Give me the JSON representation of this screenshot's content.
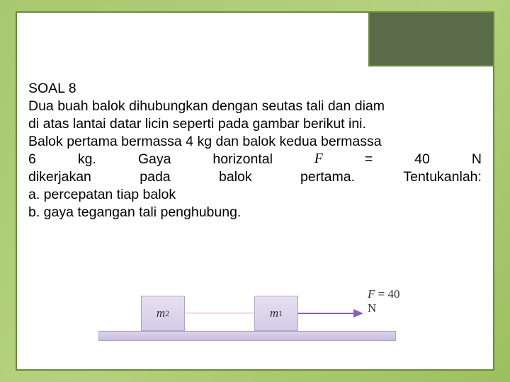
{
  "problem": {
    "title": "SOAL 8",
    "line1": "Dua buah balok dihubungkan dengan seutas tali dan diam",
    "line2": "di atas lantai datar licin seperti pada gambar berikut ini.",
    "line3": "Balok pertama bermassa 4 kg dan balok kedua bermassa",
    "line4_p1": "6",
    "line4_p2": "kg.",
    "line4_p3": "Gaya",
    "line4_p4": "horizontal",
    "line4_p5": "F",
    "line4_p6": "=",
    "line4_p7": "40",
    "line4_p8": "N",
    "line5_p1": "dikerjakan",
    "line5_p2": "pada",
    "line5_p3": "balok",
    "line5_p4": "pertama.",
    "line5_p5": "Tentukanlah:",
    "line6": "a. percepatan tiap balok",
    "line7": "b. gaya tegangan tali penghubung."
  },
  "diagram": {
    "m1_label": "m",
    "m1_sub": "1",
    "m2_label": "m",
    "m2_sub": "2",
    "force_var": "F",
    "force_eq": " = 40 N",
    "colors": {
      "floor_top": "#dcd4e8",
      "floor_bottom": "#c8bce0",
      "block_top": "#e6e0f0",
      "block_bottom": "#d4cce6",
      "border": "#b0a4c8",
      "rope": "#d896c0",
      "arrow": "#8860b8"
    }
  }
}
